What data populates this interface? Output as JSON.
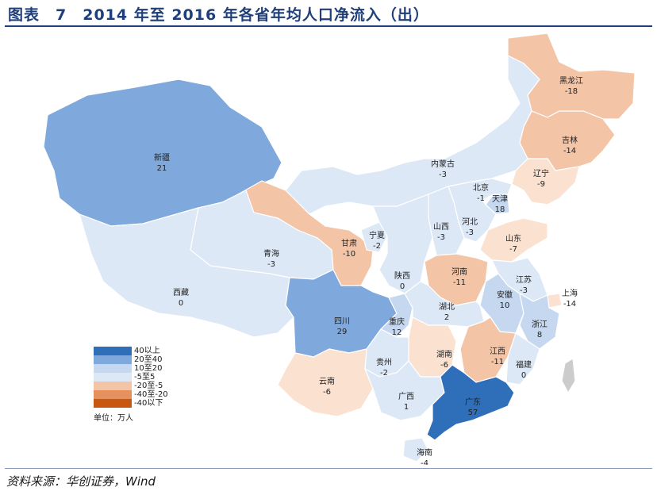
{
  "title": "图表　7　2014 年至 2016 年各省年均人口净流入（出）",
  "source": "资料来源：华创证券，Wind",
  "colors": {
    "c40": "#2f6fba",
    "c20": "#7fa9dc",
    "c10": "#c5d8ef",
    "c0": "#dce8f6",
    "cn5": "#f3c4a6",
    "cn20": "#e6905e",
    "cn40": "#c8580f",
    "border": "#ffffff",
    "taiwan": "#cccccc"
  },
  "legend": {
    "items": [
      {
        "label": "40以上",
        "color": "#2f6fba"
      },
      {
        "label": "20至40",
        "color": "#7fa9dc"
      },
      {
        "label": "10至20",
        "color": "#c5d8ef"
      },
      {
        "label": "-5至5",
        "color": "#dce8f6"
      },
      {
        "label": "-20至-5",
        "color": "#f3c4a6"
      },
      {
        "label": "-40至-20",
        "color": "#e6905e"
      },
      {
        "label": "-40以下",
        "color": "#c8580f"
      }
    ],
    "unit": "单位：万人"
  },
  "regions": [
    {
      "name": "黑龙江",
      "value": "-18",
      "fill": "#f3c4a6"
    },
    {
      "name": "吉林",
      "value": "-14",
      "fill": "#f3c4a6"
    },
    {
      "name": "辽宁",
      "value": "-9",
      "fill": "#fbe1d0"
    },
    {
      "name": "内蒙古",
      "value": "-3",
      "fill": "#dce8f6"
    },
    {
      "name": "北京",
      "value": "-1",
      "fill": "#dce8f6"
    },
    {
      "name": "天津",
      "value": "18",
      "fill": "#c5d8ef"
    },
    {
      "name": "河北",
      "value": "-3",
      "fill": "#dce8f6"
    },
    {
      "name": "山西",
      "value": "-3",
      "fill": "#dce8f6"
    },
    {
      "name": "山东",
      "value": "-7",
      "fill": "#fbe1d0"
    },
    {
      "name": "新疆",
      "value": "21",
      "fill": "#7fa9dc"
    },
    {
      "name": "甘肃",
      "value": "-10",
      "fill": "#f3c4a6"
    },
    {
      "name": "宁夏",
      "value": "-2",
      "fill": "#dce8f6"
    },
    {
      "name": "青海",
      "value": "-3",
      "fill": "#dce8f6"
    },
    {
      "name": "陕西",
      "value": "0",
      "fill": "#dce8f6"
    },
    {
      "name": "河南",
      "value": "-11",
      "fill": "#f3c4a6"
    },
    {
      "name": "江苏",
      "value": "-3",
      "fill": "#dce8f6"
    },
    {
      "name": "上海",
      "value": "-14",
      "fill": "#fbe1d0"
    },
    {
      "name": "安徽",
      "value": "10",
      "fill": "#c5d8ef"
    },
    {
      "name": "西藏",
      "value": "0",
      "fill": "#dce8f6"
    },
    {
      "name": "四川",
      "value": "29",
      "fill": "#7fa9dc"
    },
    {
      "name": "重庆",
      "value": "12",
      "fill": "#c5d8ef"
    },
    {
      "name": "湖北",
      "value": "2",
      "fill": "#dce8f6"
    },
    {
      "name": "浙江",
      "value": "8",
      "fill": "#c5d8ef"
    },
    {
      "name": "湖南",
      "value": "-6",
      "fill": "#fbe1d0"
    },
    {
      "name": "江西",
      "value": "-11",
      "fill": "#f3c4a6"
    },
    {
      "name": "贵州",
      "value": "-2",
      "fill": "#dce8f6"
    },
    {
      "name": "福建",
      "value": "0",
      "fill": "#dce8f6"
    },
    {
      "name": "云南",
      "value": "-6",
      "fill": "#fbe1d0"
    },
    {
      "name": "广西",
      "value": "1",
      "fill": "#dce8f6"
    },
    {
      "name": "广东",
      "value": "57",
      "fill": "#2f6fba"
    },
    {
      "name": "海南",
      "value": "-4",
      "fill": "#dce8f6"
    }
  ]
}
